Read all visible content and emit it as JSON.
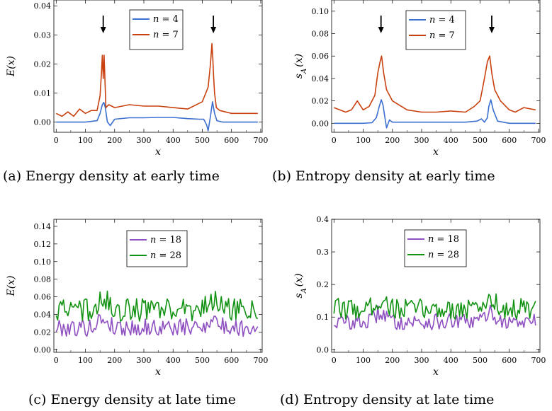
{
  "colors": {
    "blue": "#3b6fd0",
    "red": "#c8410f",
    "purple": "#8e4fc0",
    "green": "#129212",
    "axis": "#000000"
  },
  "chart_data": [
    {
      "type": "line",
      "caption": "(a) Energy density at early time",
      "xlabel": "x",
      "ylabel": "E(x)",
      "xlim": [
        -8,
        705
      ],
      "ylim": [
        -0.0035,
        0.042
      ],
      "xticks": [
        0,
        100,
        200,
        300,
        400,
        500,
        600,
        700
      ],
      "yticks": [
        0.0,
        0.01,
        0.02,
        0.03,
        0.04
      ],
      "ytick_labels": [
        "0.00",
        "0.01",
        "0.02",
        "0.03",
        "0.04"
      ],
      "legend_position": "top-center",
      "arrows_at_x": [
        161,
        538
      ],
      "series": [
        {
          "name": "n = 4",
          "legend_prefix": "n",
          "legend_value": "= 4",
          "color_key": "blue",
          "x": [
            0,
            100,
            140,
            150,
            158,
            163,
            168,
            175,
            185,
            200,
            250,
            300,
            350,
            400,
            450,
            490,
            505,
            515,
            520,
            528,
            535,
            542,
            550,
            570,
            600,
            650,
            690
          ],
          "y": [
            0,
            0,
            0.0005,
            0.003,
            0.006,
            0.0068,
            0.005,
            0.0001,
            -0.0012,
            0.001,
            0.0015,
            0.0015,
            0.0016,
            0.0016,
            0.0012,
            0.001,
            0.001,
            -0.001,
            -0.003,
            0.002,
            0.007,
            0.003,
            0.0005,
            0,
            0,
            0,
            0
          ]
        },
        {
          "name": "n = 7",
          "legend_prefix": "n",
          "legend_value": "= 7",
          "color_key": "red",
          "x": [
            0,
            20,
            40,
            60,
            80,
            100,
            120,
            140,
            150,
            155,
            158,
            161,
            164,
            167,
            170,
            180,
            200,
            250,
            300,
            350,
            400,
            450,
            500,
            520,
            528,
            533,
            536,
            539,
            542,
            548,
            560,
            600,
            650,
            690
          ],
          "y": [
            0.003,
            0.002,
            0.0035,
            0.002,
            0.0045,
            0.003,
            0.004,
            0.004,
            0.009,
            0.017,
            0.023,
            0.015,
            0.023,
            0.014,
            0.005,
            0.006,
            0.005,
            0.006,
            0.0055,
            0.0055,
            0.005,
            0.0045,
            0.007,
            0.012,
            0.02,
            0.027,
            0.022,
            0.015,
            0.01,
            0.005,
            0.004,
            0.003,
            0.003,
            0.003
          ]
        }
      ]
    },
    {
      "type": "line",
      "caption": "(b) Entropy density at early time",
      "xlabel": "x",
      "ylabel": "s_A(x)",
      "xlim": [
        -8,
        705
      ],
      "ylim": [
        -0.008,
        0.11
      ],
      "xticks": [
        0,
        100,
        200,
        300,
        400,
        500,
        600,
        700
      ],
      "yticks": [
        0.0,
        0.02,
        0.04,
        0.06,
        0.08,
        0.1
      ],
      "ytick_labels": [
        "0.00",
        "0.02",
        "0.04",
        "0.06",
        "0.08",
        "0.10"
      ],
      "legend_position": "top-right",
      "arrows_at_x": [
        161,
        540
      ],
      "series": [
        {
          "name": "n = 4",
          "legend_prefix": "n",
          "legend_value": "= 4",
          "color_key": "blue",
          "x": [
            0,
            100,
            130,
            145,
            155,
            162,
            168,
            175,
            180,
            190,
            200,
            250,
            300,
            350,
            400,
            450,
            490,
            505,
            515,
            525,
            530,
            537,
            545,
            560,
            600,
            650,
            690
          ],
          "y": [
            0,
            0,
            0.0005,
            0.005,
            0.015,
            0.021,
            0.016,
            0.004,
            -0.004,
            0.003,
            0.001,
            0.001,
            0.001,
            0.001,
            0.001,
            0.001,
            0.002,
            0.004,
            0.001,
            0.005,
            0.015,
            0.021,
            0.012,
            0.002,
            0,
            0,
            0
          ]
        },
        {
          "name": "n = 7",
          "legend_prefix": "n",
          "legend_value": "= 7",
          "color_key": "red",
          "x": [
            0,
            20,
            40,
            60,
            80,
            100,
            120,
            140,
            150,
            158,
            163,
            170,
            180,
            200,
            250,
            300,
            350,
            400,
            450,
            480,
            500,
            515,
            525,
            533,
            540,
            550,
            570,
            600,
            620,
            650,
            690
          ],
          "y": [
            0.014,
            0.012,
            0.01,
            0.012,
            0.02,
            0.012,
            0.015,
            0.025,
            0.045,
            0.055,
            0.06,
            0.045,
            0.03,
            0.02,
            0.012,
            0.01,
            0.01,
            0.011,
            0.01,
            0.015,
            0.02,
            0.04,
            0.055,
            0.06,
            0.045,
            0.03,
            0.02,
            0.012,
            0.01,
            0.014,
            0.012
          ]
        }
      ]
    },
    {
      "type": "line",
      "caption": "(c) Energy density at late time",
      "xlabel": "x",
      "ylabel": "E(x)",
      "xlim": [
        -8,
        705
      ],
      "ylim": [
        -0.003,
        0.148
      ],
      "xticks": [
        0,
        100,
        200,
        300,
        400,
        500,
        600,
        700
      ],
      "yticks": [
        0.0,
        0.02,
        0.04,
        0.06,
        0.08,
        0.1,
        0.12,
        0.14
      ],
      "ytick_labels": [
        "0.00",
        "0.02",
        "0.04",
        "0.06",
        "0.08",
        "0.10",
        "0.12",
        "0.14"
      ],
      "legend_position": "top-center",
      "series": [
        {
          "name": "n = 18",
          "legend_prefix": "n",
          "legend_value": "= 18",
          "color_key": "purple",
          "base": 0.025,
          "amplitude": 0.02,
          "bump_at_x": [
            160,
            535
          ],
          "bump_height": 0.01
        },
        {
          "name": "n = 28",
          "legend_prefix": "n",
          "legend_value": "= 28",
          "color_key": "green",
          "base": 0.045,
          "amplitude": 0.027,
          "bump_at_x": [
            160,
            535
          ],
          "bump_height": 0.012
        }
      ]
    },
    {
      "type": "line",
      "caption": "(d) Entropy density at late time",
      "xlabel": "x",
      "ylabel": "s_A(x)",
      "xlim": [
        -8,
        705
      ],
      "ylim": [
        -0.008,
        0.4
      ],
      "xticks": [
        0,
        100,
        200,
        300,
        400,
        500,
        600,
        700
      ],
      "yticks": [
        0.0,
        0.1,
        0.2,
        0.3,
        0.4
      ],
      "ytick_labels": [
        "0.0",
        "0.1",
        "0.2",
        "0.3",
        "0.4"
      ],
      "legend_position": "top-right",
      "series": [
        {
          "name": "n = 18",
          "legend_prefix": "n",
          "legend_value": "= 18",
          "color_key": "purple",
          "base": 0.085,
          "amplitude": 0.05,
          "bump_at_x": [
            160,
            535
          ],
          "bump_height": 0.03
        },
        {
          "name": "n = 28",
          "legend_prefix": "n",
          "legend_value": "= 28",
          "color_key": "green",
          "base": 0.125,
          "amplitude": 0.065,
          "bump_at_x": [
            160,
            535
          ],
          "bump_height": 0.03
        }
      ]
    }
  ]
}
